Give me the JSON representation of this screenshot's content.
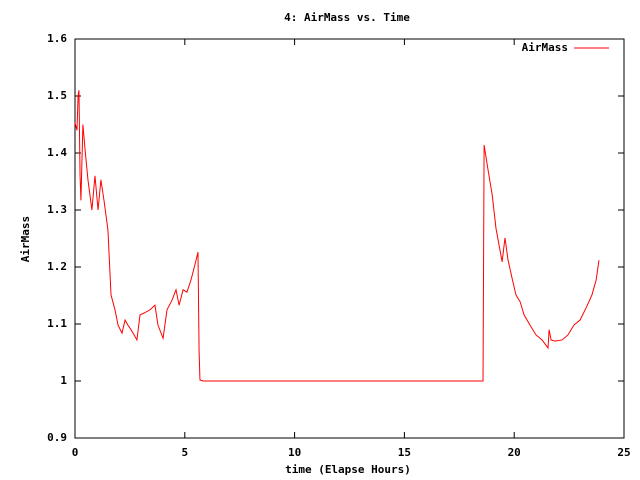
{
  "chart_data": {
    "type": "line",
    "title": "4: AirMass vs. Time",
    "x_label": "time (Elapse Hours)",
    "y_label": "AirMass",
    "x": [
      0,
      0.09,
      0.14,
      0.18,
      0.23,
      0.27,
      0.36,
      0.46,
      0.59,
      0.77,
      0.91,
      1.05,
      1.18,
      1.32,
      1.5,
      1.64,
      1.82,
      1.96,
      2.14,
      2.28,
      2.41,
      2.55,
      2.69,
      2.82,
      2.96,
      3.19,
      3.42,
      3.64,
      3.78,
      4.01,
      4.19,
      4.42,
      4.6,
      4.74,
      4.92,
      5.1,
      5.28,
      5.46,
      5.6,
      5.65,
      5.69,
      5.83,
      18.58,
      18.63,
      18.81,
      19.0,
      19.17,
      19.45,
      19.58,
      19.72,
      19.9,
      20.08,
      20.27,
      20.45,
      20.72,
      20.99,
      21.27,
      21.54,
      21.59,
      21.68,
      21.86,
      22.18,
      22.45,
      22.72,
      23.0,
      23.27,
      23.54,
      23.73,
      23.86
    ],
    "series": [
      {
        "name": "AirMass",
        "color": "#ff0000",
        "values": [
          1.453,
          1.44,
          1.5,
          1.51,
          1.36,
          1.317,
          1.45,
          1.405,
          1.353,
          1.3,
          1.36,
          1.3,
          1.353,
          1.317,
          1.265,
          1.151,
          1.125,
          1.098,
          1.084,
          1.107,
          1.098,
          1.09,
          1.081,
          1.072,
          1.116,
          1.12,
          1.125,
          1.133,
          1.098,
          1.075,
          1.125,
          1.142,
          1.16,
          1.133,
          1.16,
          1.156,
          1.177,
          1.204,
          1.226,
          1.054,
          1.002,
          1.0,
          1.0,
          1.414,
          1.37,
          1.326,
          1.268,
          1.209,
          1.251,
          1.212,
          1.181,
          1.151,
          1.139,
          1.116,
          1.098,
          1.081,
          1.072,
          1.058,
          1.09,
          1.072,
          1.07,
          1.072,
          1.081,
          1.098,
          1.107,
          1.128,
          1.151,
          1.177,
          1.212
        ]
      }
    ],
    "xlim": [
      0,
      25
    ],
    "xticks": [
      0,
      5,
      10,
      15,
      20,
      25
    ],
    "ylim": [
      0.9,
      1.6
    ],
    "yticks": [
      0.9,
      1,
      1.1,
      1.2,
      1.3,
      1.4,
      1.5,
      1.6
    ],
    "legend": "top right",
    "grid": false
  }
}
